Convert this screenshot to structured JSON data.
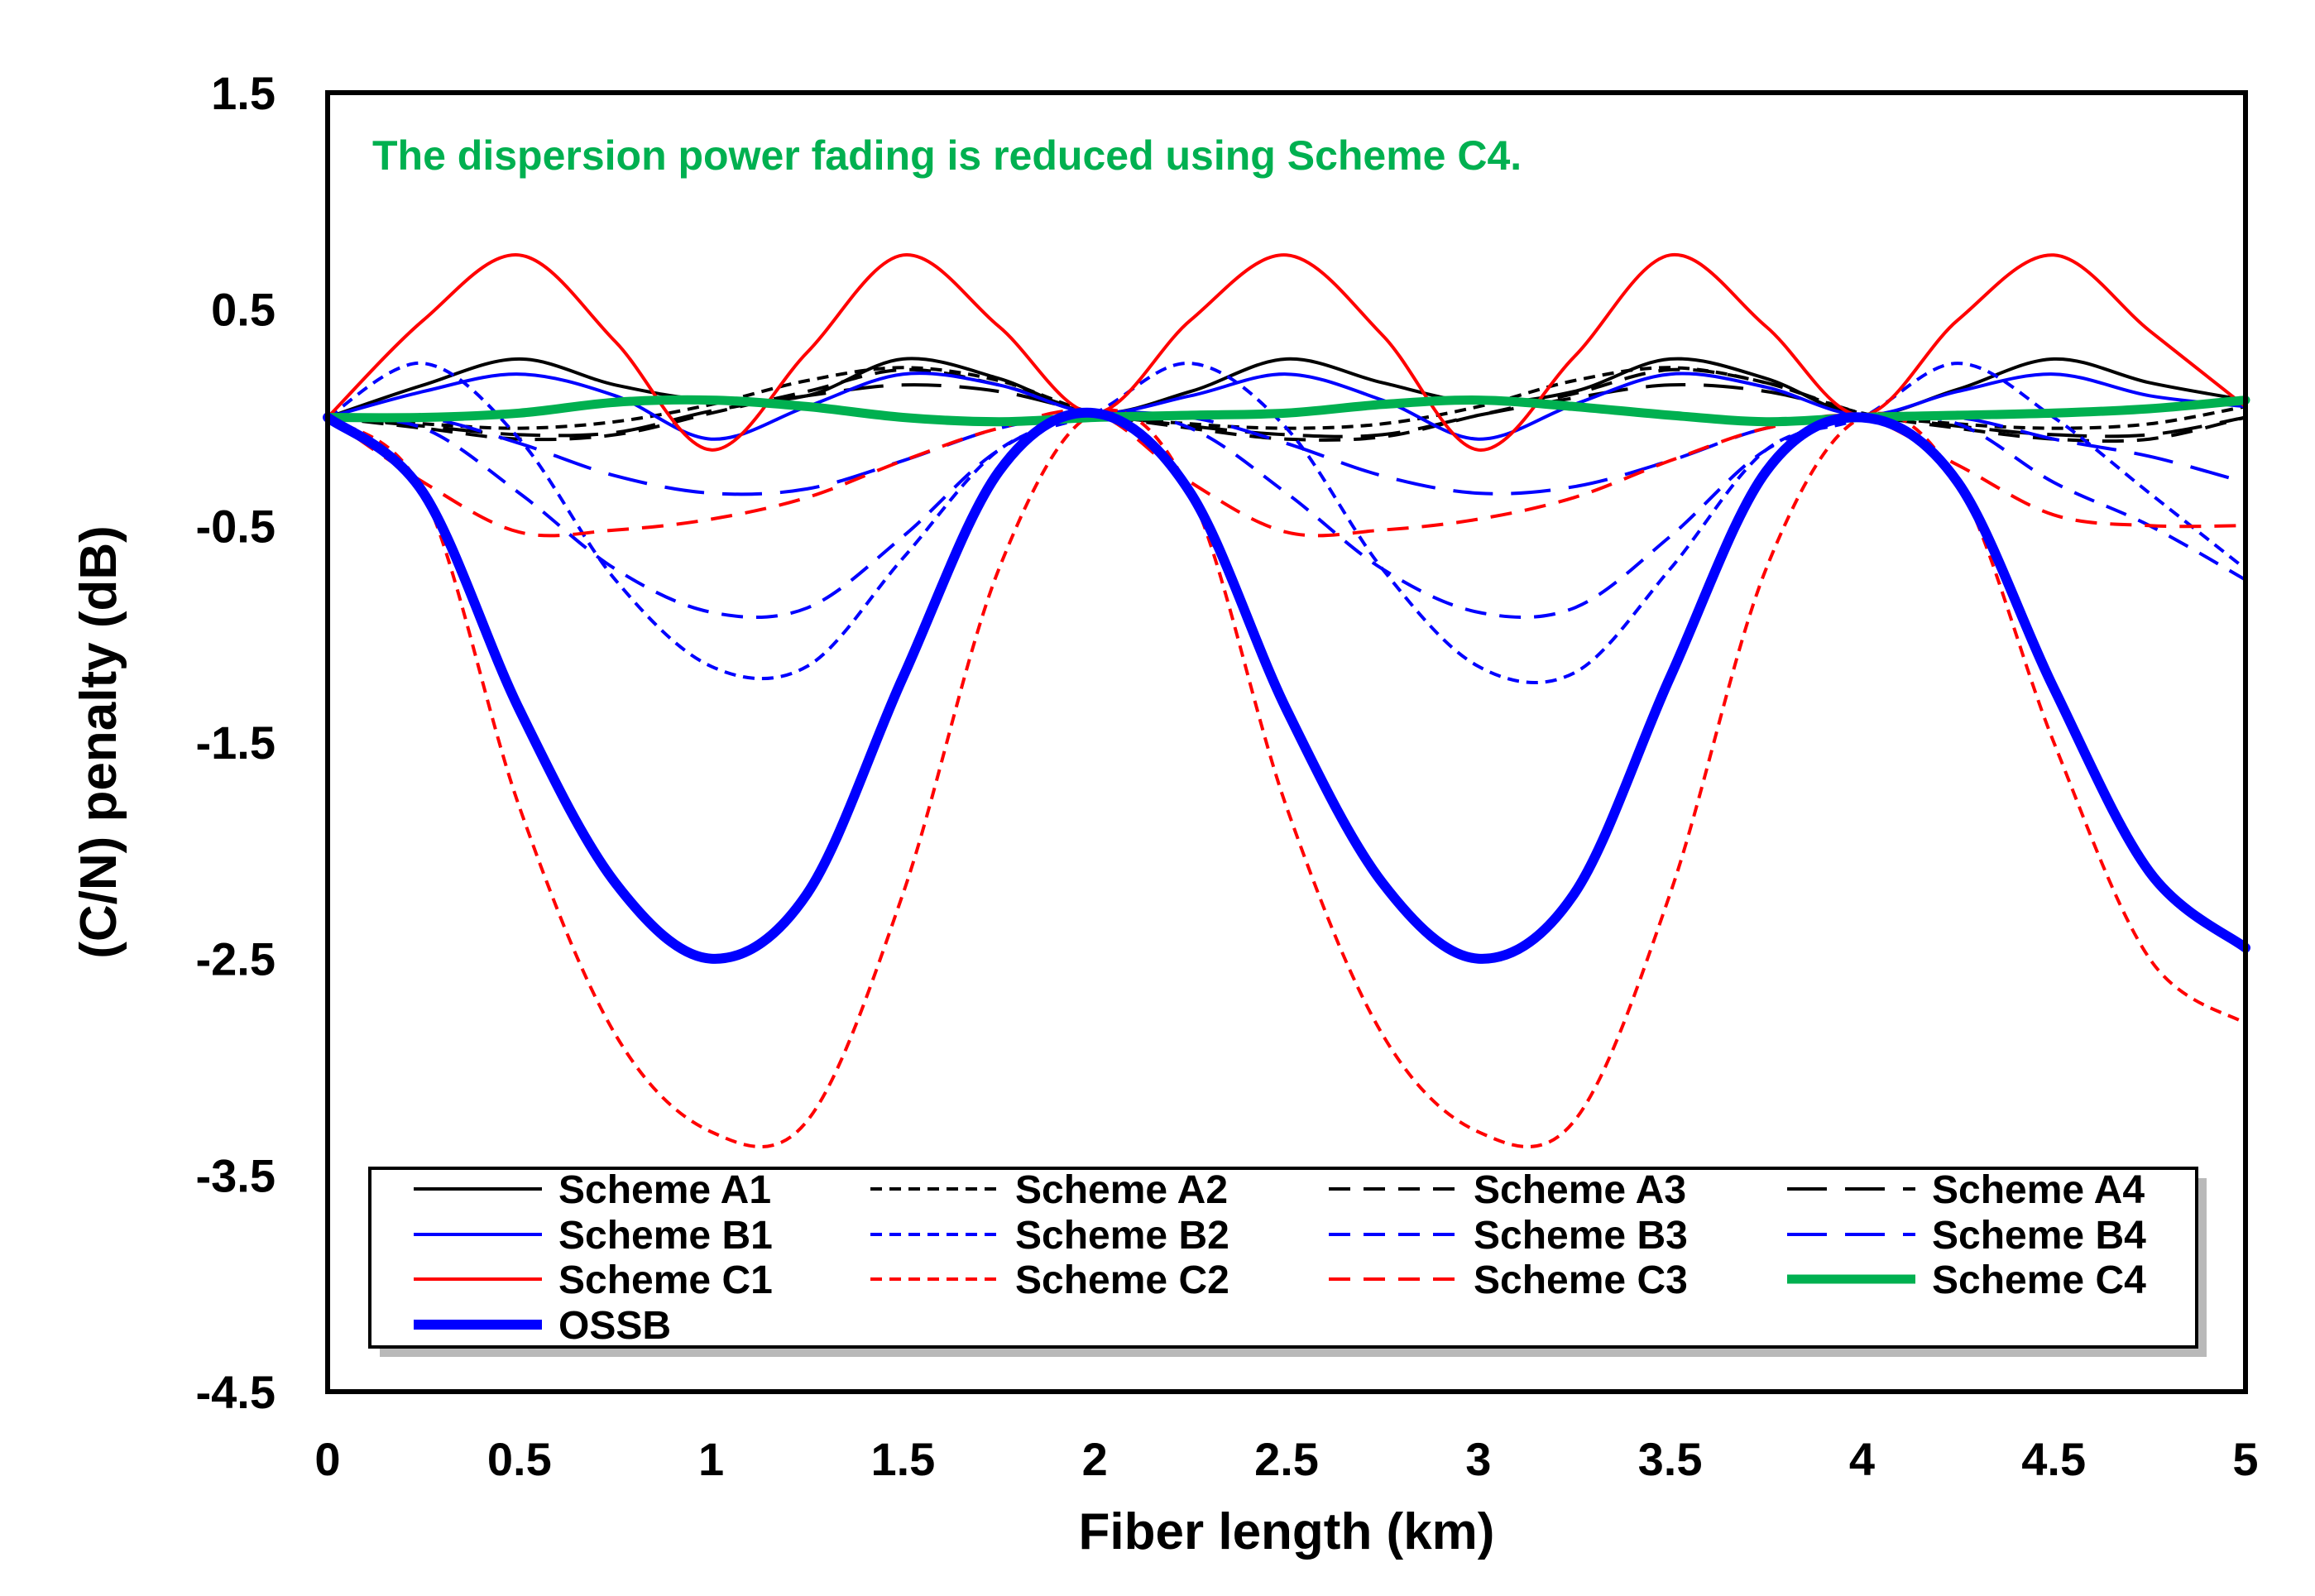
{
  "chart_data": {
    "type": "line",
    "title": "",
    "xlabel": "Fiber length (km)",
    "ylabel": "(C/N) penalty (dB)",
    "xlim": [
      0,
      5
    ],
    "ylim": [
      -4.5,
      1.5
    ],
    "xticks": [
      0,
      0.5,
      1,
      1.5,
      2,
      2.5,
      3,
      3.5,
      4,
      4.5,
      5
    ],
    "xtick_labels": [
      "0",
      "0.5",
      "1",
      "1.5",
      "2",
      "2.5",
      "3",
      "3.5",
      "4",
      "4.5",
      "5"
    ],
    "yticks": [
      1.5,
      0.5,
      -0.5,
      -1.5,
      -2.5,
      -3.5,
      -4.5
    ],
    "ytick_labels": [
      "1.5",
      "0.5",
      "-0.5",
      "-1.5",
      "-2.5",
      "-3.5",
      "-4.5"
    ],
    "grid": false,
    "legend_position": "bottom",
    "annotation": {
      "text": "The dispersion power fading is reduced using Scheme C4.",
      "color": "#00b050"
    },
    "x": [
      0,
      0.25,
      0.5,
      0.75,
      1,
      1.25,
      1.5,
      1.75,
      2,
      2.25,
      2.5,
      2.75,
      3,
      3.25,
      3.5,
      3.75,
      4,
      4.25,
      4.5,
      4.75,
      5
    ],
    "series": [
      {
        "name": "Scheme A1",
        "color": "#000000",
        "dash": "solid",
        "width": 4,
        "values": [
          0,
          0.15,
          0.27,
          0.15,
          0.08,
          0.1,
          0.27,
          0.18,
          0.02,
          0.12,
          0.27,
          0.16,
          0.07,
          0.12,
          0.27,
          0.18,
          0.01,
          0.13,
          0.27,
          0.16,
          0.08
        ]
      },
      {
        "name": "Scheme A2",
        "color": "#000000",
        "dash": "short",
        "width": 4,
        "values": [
          0,
          -0.03,
          -0.05,
          -0.02,
          0.06,
          0.17,
          0.23,
          0.17,
          0.02,
          -0.03,
          -0.05,
          -0.03,
          0.05,
          0.17,
          0.23,
          0.16,
          0.02,
          -0.03,
          -0.05,
          -0.03,
          0.05
        ]
      },
      {
        "name": "Scheme A3",
        "color": "#000000",
        "dash": "medium",
        "width": 4,
        "values": [
          0,
          -0.05,
          -0.1,
          -0.08,
          0.02,
          0.12,
          0.22,
          0.15,
          0.02,
          -0.05,
          -0.1,
          -0.09,
          0.01,
          0.11,
          0.22,
          0.16,
          0.02,
          -0.05,
          -0.1,
          -0.1,
          0.0
        ]
      },
      {
        "name": "Scheme A4",
        "color": "#000000",
        "dash": "long",
        "width": 4,
        "values": [
          0,
          -0.04,
          -0.08,
          -0.07,
          0.03,
          0.1,
          0.15,
          0.12,
          0.02,
          -0.04,
          -0.08,
          -0.08,
          0.01,
          0.09,
          0.15,
          0.12,
          0.02,
          -0.04,
          -0.08,
          -0.08,
          0.0
        ]
      },
      {
        "name": "Scheme B1",
        "color": "#0000ff",
        "dash": "solid",
        "width": 4,
        "values": [
          0,
          0.12,
          0.2,
          0.1,
          -0.1,
          0.05,
          0.2,
          0.15,
          0.02,
          0.1,
          0.2,
          0.08,
          -0.1,
          0.06,
          0.2,
          0.14,
          0.01,
          0.12,
          0.2,
          0.1,
          0.05
        ]
      },
      {
        "name": "Scheme B2",
        "color": "#0000ff",
        "dash": "short",
        "width": 4,
        "values": [
          0,
          0.25,
          -0.1,
          -0.75,
          -1.15,
          -1.15,
          -0.65,
          -0.15,
          0.02,
          0.25,
          -0.05,
          -0.7,
          -1.15,
          -1.18,
          -0.7,
          -0.15,
          0.0,
          0.25,
          0.0,
          -0.35,
          -0.7
        ]
      },
      {
        "name": "Scheme B3",
        "color": "#0000ff",
        "dash": "medium",
        "width": 4,
        "values": [
          0,
          -0.05,
          -0.35,
          -0.7,
          -0.9,
          -0.88,
          -0.55,
          -0.15,
          0.02,
          -0.05,
          -0.35,
          -0.7,
          -0.9,
          -0.88,
          -0.55,
          -0.15,
          0.0,
          -0.03,
          -0.3,
          -0.5,
          -0.75
        ]
      },
      {
        "name": "Scheme B4",
        "color": "#0000ff",
        "dash": "long",
        "width": 4,
        "values": [
          0,
          0.0,
          -0.12,
          -0.27,
          -0.35,
          -0.33,
          -0.2,
          -0.05,
          0.02,
          0.0,
          -0.12,
          -0.27,
          -0.35,
          -0.32,
          -0.2,
          -0.05,
          0.0,
          0.0,
          -0.1,
          -0.18,
          -0.3
        ]
      },
      {
        "name": "Scheme C1",
        "color": "#ff0000",
        "dash": "solid",
        "width": 4,
        "values": [
          0,
          0.45,
          0.75,
          0.35,
          -0.15,
          0.3,
          0.75,
          0.42,
          0.02,
          0.45,
          0.75,
          0.38,
          -0.15,
          0.28,
          0.75,
          0.42,
          0.01,
          0.45,
          0.75,
          0.4,
          0.05
        ]
      },
      {
        "name": "Scheme C2",
        "color": "#ff0000",
        "dash": "short",
        "width": 4,
        "values": [
          0,
          -0.35,
          -1.8,
          -2.85,
          -3.3,
          -3.25,
          -2.2,
          -0.7,
          0.02,
          -0.35,
          -1.8,
          -2.85,
          -3.3,
          -3.25,
          -2.2,
          -0.7,
          0.0,
          -0.3,
          -1.5,
          -2.5,
          -2.8
        ]
      },
      {
        "name": "Scheme C3",
        "color": "#ff0000",
        "dash": "medium",
        "width": 4,
        "values": [
          0,
          -0.3,
          -0.53,
          -0.52,
          -0.47,
          -0.37,
          -0.2,
          -0.05,
          0.02,
          -0.3,
          -0.53,
          -0.52,
          -0.47,
          -0.37,
          -0.2,
          -0.05,
          0.0,
          -0.22,
          -0.45,
          -0.5,
          -0.5
        ]
      },
      {
        "name": "Scheme C4",
        "color": "#00b050",
        "dash": "solid",
        "width": 11,
        "values": [
          0,
          0.0,
          0.02,
          0.07,
          0.08,
          0.05,
          0.0,
          -0.02,
          0.0,
          0.01,
          0.02,
          0.06,
          0.08,
          0.05,
          0.01,
          -0.02,
          0.0,
          0.01,
          0.02,
          0.04,
          0.08
        ]
      },
      {
        "name": "OSSB",
        "color": "#0000ff",
        "dash": "solid",
        "width": 12,
        "values": [
          0,
          -0.35,
          -1.35,
          -2.15,
          -2.5,
          -2.2,
          -1.2,
          -0.25,
          0.02,
          -0.35,
          -1.35,
          -2.15,
          -2.5,
          -2.2,
          -1.2,
          -0.25,
          0.0,
          -0.3,
          -1.25,
          -2.1,
          -2.45
        ]
      }
    ]
  }
}
